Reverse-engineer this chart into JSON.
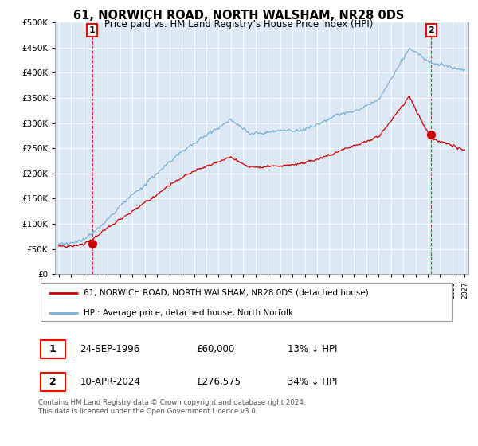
{
  "title": "61, NORWICH ROAD, NORTH WALSHAM, NR28 0DS",
  "subtitle": "Price paid vs. HM Land Registry’s House Price Index (HPI)",
  "property_label": "61, NORWICH ROAD, NORTH WALSHAM, NR28 0DS (detached house)",
  "hpi_label": "HPI: Average price, detached house, North Norfolk",
  "sale1_date": "24-SEP-1996",
  "sale1_price": 60000,
  "sale1_note": "13% ↓ HPI",
  "sale2_date": "10-APR-2024",
  "sale2_price": 276575,
  "sale2_note": "34% ↓ HPI",
  "sale1_year": 1996.73,
  "sale2_year": 2024.27,
  "property_color": "#cc0000",
  "hpi_color": "#7ab0d4",
  "background_color": "#ffffff",
  "plot_bg_color": "#dce9f5",
  "grid_color": "#ffffff",
  "ylim": [
    0,
    500000
  ],
  "xlim_start": 1993.7,
  "xlim_end": 2027.3,
  "footnote": "Contains HM Land Registry data © Crown copyright and database right 2024.\nThis data is licensed under the Open Government Licence v3.0."
}
